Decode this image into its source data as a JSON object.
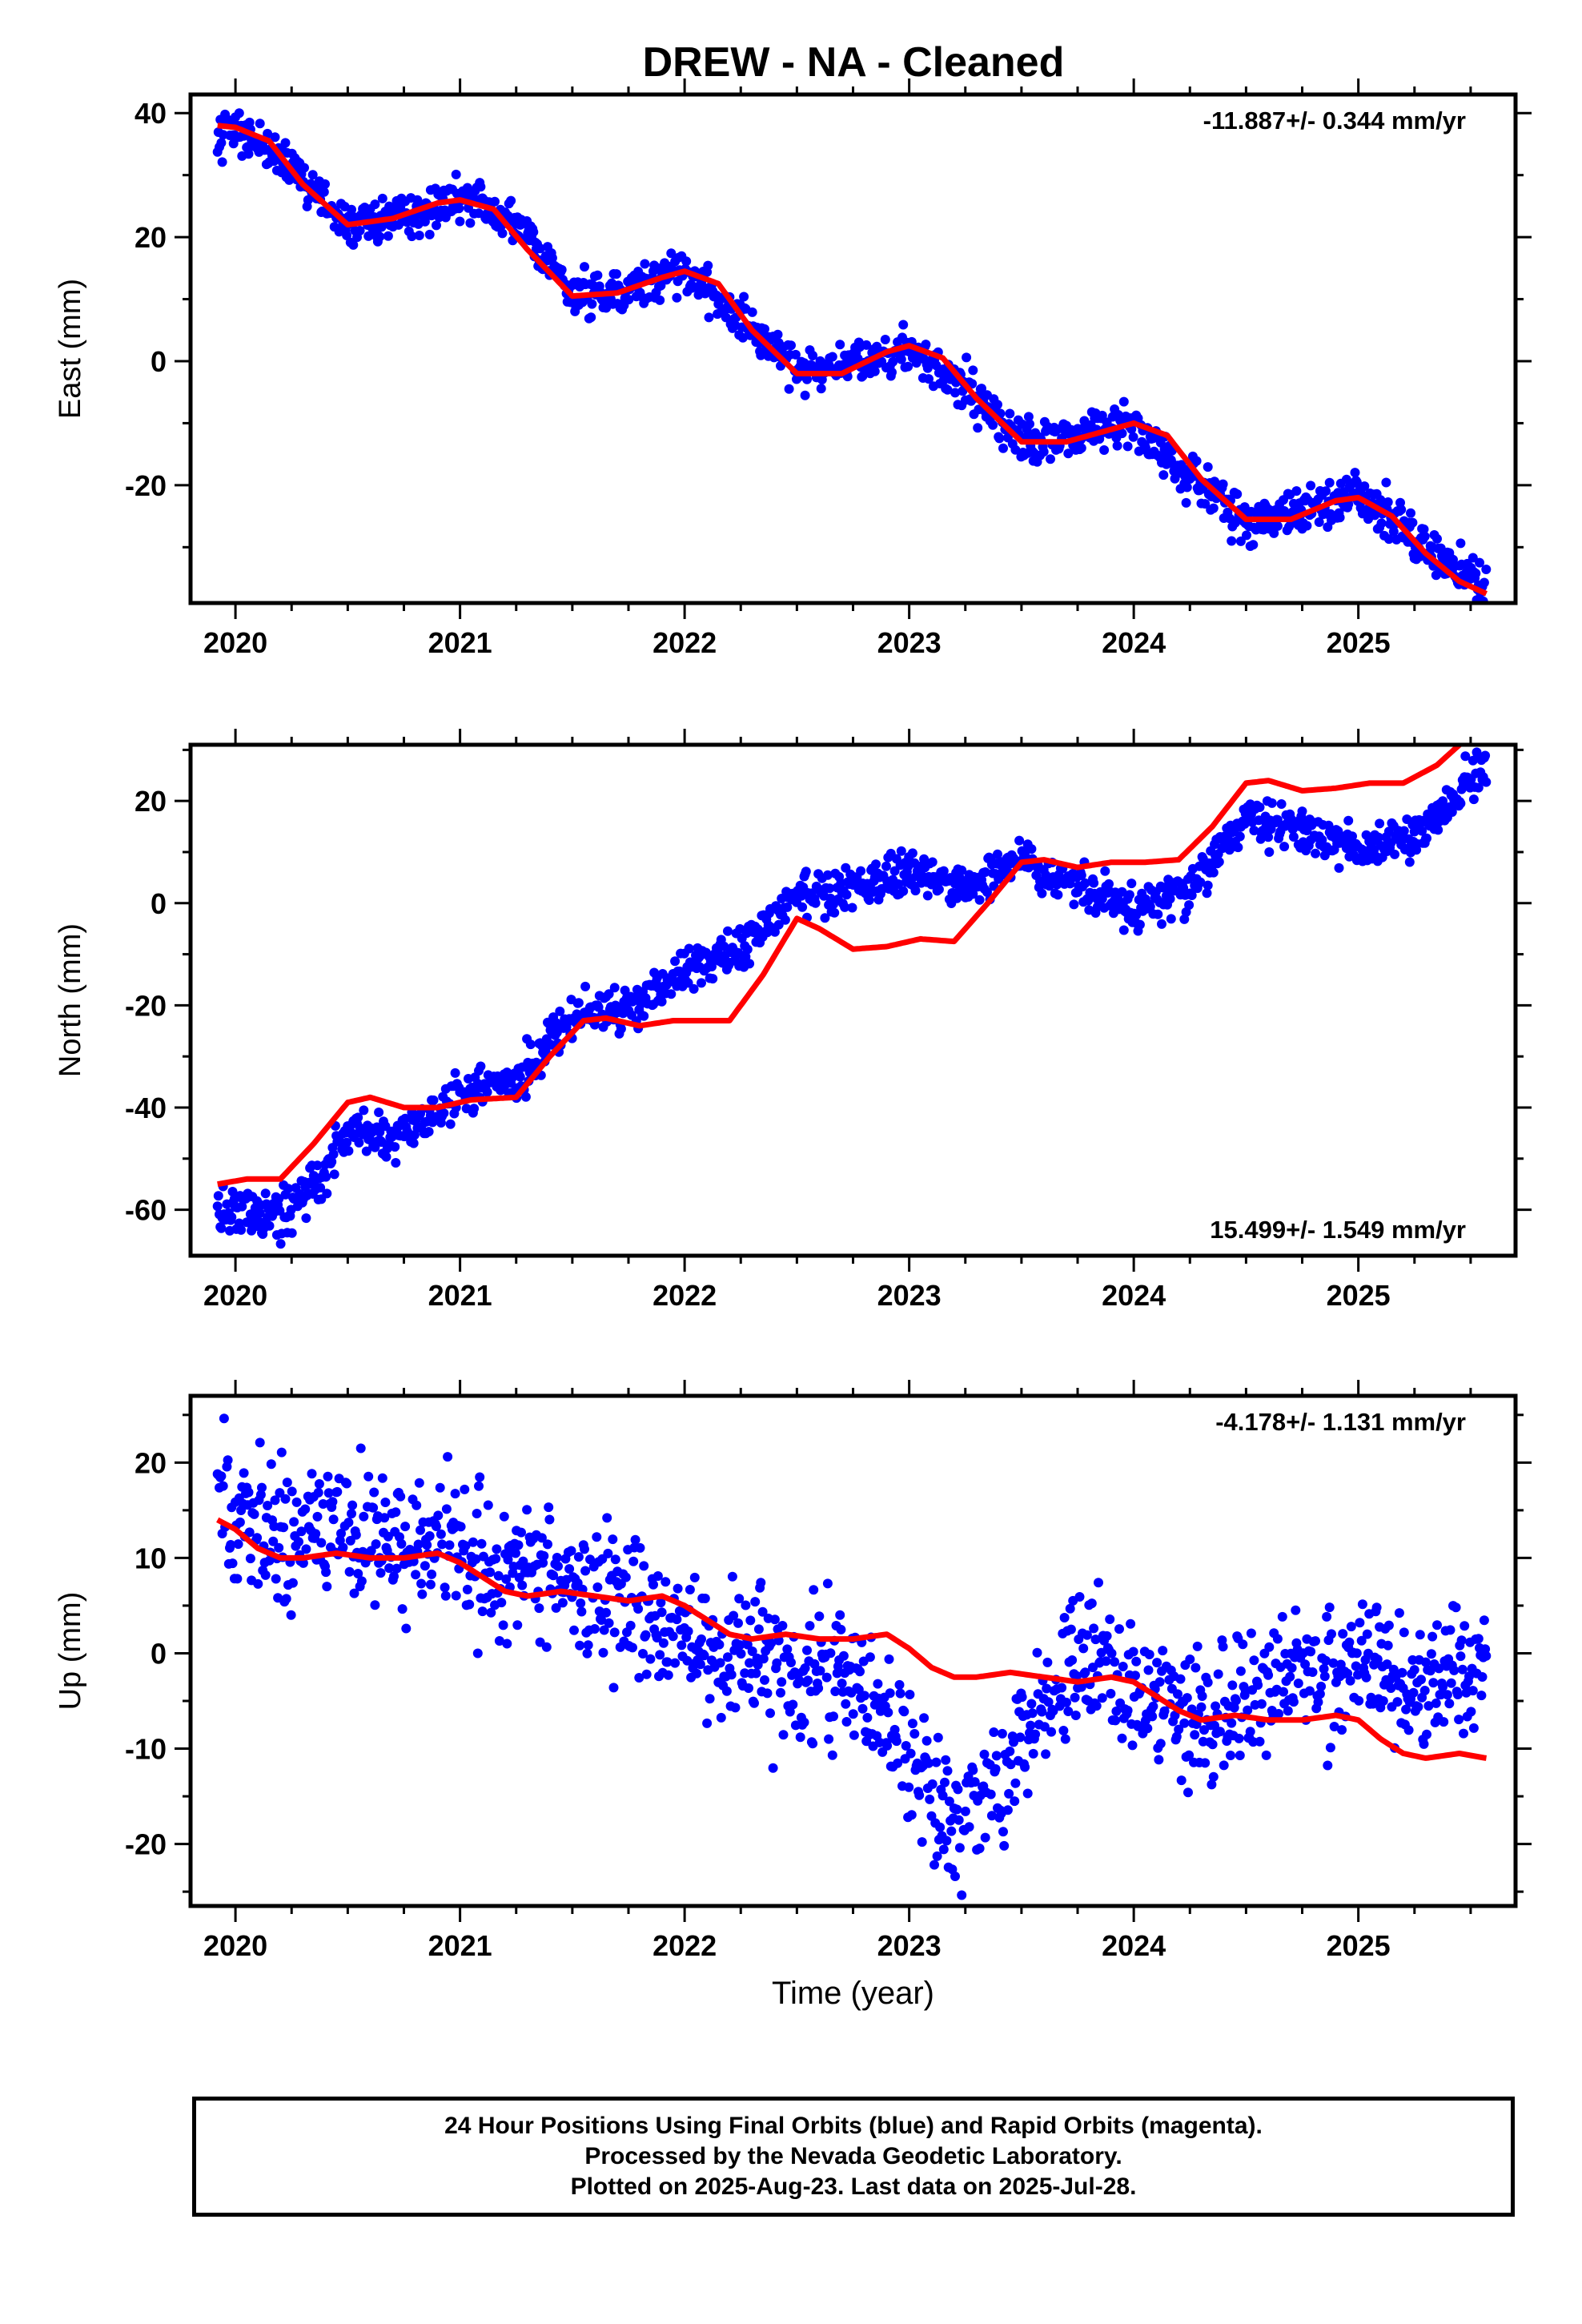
{
  "chart_data": [
    {
      "type": "scatter",
      "title": "DREW  - NA - Cleaned",
      "ylabel": "East (mm)",
      "xlabel": "",
      "rate_label": "-11.887+/- 0.344 mm/yr",
      "rate_position": "top-right",
      "xlim": [
        2019.8,
        2025.7
      ],
      "ylim": [
        -39,
        43
      ],
      "xticks": [
        "2020",
        "2021",
        "2022",
        "2023",
        "2024",
        "2025"
      ],
      "yticks": [
        "40",
        "20",
        "0",
        "-20"
      ],
      "ytick_values": [
        40,
        20,
        0,
        -20
      ],
      "data_summary": {
        "x": [
          2019.92,
          2020.0,
          2020.25,
          2020.5,
          2020.75,
          2021.0,
          2021.25,
          2021.5,
          2021.75,
          2022.0,
          2022.25,
          2022.5,
          2022.75,
          2023.0,
          2023.25,
          2023.5,
          2023.75,
          2024.0,
          2024.25,
          2024.5,
          2024.75,
          2025.0,
          2025.25,
          2025.57
        ],
        "y": [
          38,
          37,
          31,
          22,
          23,
          26,
          22,
          11,
          11,
          15,
          7,
          -2,
          0,
          2,
          -4,
          -13,
          -12,
          -10,
          -19,
          -26,
          -24,
          -21,
          -29,
          -37
        ]
      },
      "series": [
        {
          "name": "24 hour positions",
          "color": "#0000ff",
          "noise": 1.8
        },
        {
          "name": "model fit",
          "color": "#ff0000",
          "x": [
            2019.92,
            2020.0,
            2020.15,
            2020.3,
            2020.5,
            2020.7,
            2020.9,
            2021.0,
            2021.15,
            2021.3,
            2021.5,
            2021.7,
            2021.9,
            2022.0,
            2022.15,
            2022.3,
            2022.5,
            2022.7,
            2022.9,
            2023.0,
            2023.15,
            2023.3,
            2023.5,
            2023.7,
            2023.9,
            2024.0,
            2024.15,
            2024.3,
            2024.5,
            2024.7,
            2024.9,
            2025.0,
            2025.15,
            2025.3,
            2025.45,
            2025.57
          ],
          "y": [
            38,
            37.7,
            35.5,
            28.5,
            22,
            23,
            25.5,
            26,
            24.5,
            18,
            10.5,
            11,
            13.5,
            14.5,
            12.5,
            5,
            -2,
            -2,
            1.5,
            2.5,
            0.5,
            -6,
            -13,
            -13,
            -11,
            -10,
            -12,
            -19,
            -25.5,
            -25.5,
            -22.5,
            -22,
            -25,
            -31,
            -35.5,
            -37.5
          ]
        }
      ]
    },
    {
      "type": "scatter",
      "title": "",
      "ylabel": "North (mm)",
      "xlabel": "",
      "rate_label": "15.499+/- 1.549 mm/yr",
      "rate_position": "bottom-right",
      "xlim": [
        2019.8,
        2025.7
      ],
      "ylim": [
        -69,
        31
      ],
      "xticks": [
        "2020",
        "2021",
        "2022",
        "2023",
        "2024",
        "2025"
      ],
      "yticks": [
        "20",
        "0",
        "-20",
        "-40",
        "-60"
      ],
      "ytick_values": [
        20,
        0,
        -20,
        -40,
        -60
      ],
      "data_summary": {
        "x": [
          2019.92,
          2020.0,
          2020.2,
          2020.35,
          2020.5,
          2020.75,
          2021.0,
          2021.25,
          2021.5,
          2021.75,
          2022.0,
          2022.25,
          2022.5,
          2022.75,
          2023.0,
          2023.25,
          2023.5,
          2023.75,
          2024.0,
          2024.25,
          2024.5,
          2024.75,
          2025.0,
          2025.25,
          2025.57
        ],
        "y": [
          -61,
          -60,
          -61,
          -55,
          -45,
          -46,
          -37,
          -35,
          -22,
          -20,
          -13,
          -9,
          2,
          3,
          6,
          3,
          8,
          3,
          -1,
          3,
          16,
          15,
          11,
          13,
          27
        ]
      },
      "series": [
        {
          "name": "24 hour positions",
          "color": "#0000ff",
          "noise": 2.2
        },
        {
          "name": "model fit",
          "color": "#ff0000",
          "x": [
            2019.92,
            2020.05,
            2020.2,
            2020.35,
            2020.5,
            2020.6,
            2020.75,
            2020.9,
            2021.05,
            2021.25,
            2021.4,
            2021.55,
            2021.65,
            2021.8,
            2021.95,
            2022.1,
            2022.2,
            2022.35,
            2022.5,
            2022.6,
            2022.75,
            2022.9,
            2023.05,
            2023.2,
            2023.35,
            2023.5,
            2023.6,
            2023.75,
            2023.9,
            2024.05,
            2024.2,
            2024.35,
            2024.5,
            2024.6,
            2024.75,
            2024.9,
            2025.05,
            2025.2,
            2025.35,
            2025.45
          ],
          "y": [
            -55,
            -54,
            -54,
            -47,
            -39,
            -38,
            -40,
            -40,
            -38.5,
            -38,
            -30,
            -23,
            -22.5,
            -24,
            -23,
            -23,
            -23,
            -14,
            -3,
            -5,
            -9,
            -8.5,
            -7,
            -7.5,
            0,
            8,
            8.5,
            7,
            8,
            8,
            8.5,
            15,
            23.5,
            24,
            22,
            22.5,
            23.5,
            23.5,
            27,
            31
          ]
        }
      ]
    },
    {
      "type": "scatter",
      "title": "",
      "ylabel": "Up (mm)",
      "xlabel": "Time (year)",
      "rate_label": "-4.178+/- 1.131 mm/yr",
      "rate_position": "top-right",
      "xlim": [
        2019.8,
        2025.7
      ],
      "ylim": [
        -26.5,
        27
      ],
      "xticks": [
        "2020",
        "2021",
        "2022",
        "2023",
        "2024",
        "2025"
      ],
      "yticks": [
        "20",
        "10",
        "0",
        "-10",
        "-20"
      ],
      "ytick_values": [
        20,
        10,
        0,
        -10,
        -20
      ],
      "data_summary": {
        "x": [
          2019.92,
          2020.0,
          2020.25,
          2020.5,
          2020.75,
          2021.0,
          2021.25,
          2021.5,
          2021.75,
          2022.0,
          2022.25,
          2022.5,
          2022.75,
          2022.9,
          2023.1,
          2023.25,
          2023.5,
          2023.75,
          2024.0,
          2024.25,
          2024.5,
          2024.75,
          2025.0,
          2025.25,
          2025.57
        ],
        "y": [
          17,
          15,
          13,
          13,
          12,
          11,
          9,
          7,
          5,
          1,
          0,
          -2,
          -3,
          -6,
          -15,
          -18,
          -10,
          -1,
          -4,
          -7,
          -4,
          -2,
          -1,
          -4,
          -2
        ]
      },
      "series": [
        {
          "name": "24 hour positions",
          "color": "#0000ff",
          "noise": 3.6
        },
        {
          "name": "model fit",
          "color": "#ff0000",
          "x": [
            2019.92,
            2020.0,
            2020.1,
            2020.2,
            2020.3,
            2020.45,
            2020.6,
            2020.75,
            2020.9,
            2021.0,
            2021.1,
            2021.2,
            2021.3,
            2021.45,
            2021.6,
            2021.75,
            2021.9,
            2022.0,
            2022.1,
            2022.2,
            2022.3,
            2022.45,
            2022.6,
            2022.75,
            2022.9,
            2023.0,
            2023.1,
            2023.2,
            2023.3,
            2023.45,
            2023.6,
            2023.75,
            2023.9,
            2024.0,
            2024.1,
            2024.2,
            2024.3,
            2024.45,
            2024.6,
            2024.75,
            2024.9,
            2025.0,
            2025.1,
            2025.2,
            2025.3,
            2025.45,
            2025.57
          ],
          "y": [
            14,
            13,
            11,
            10,
            10,
            10.5,
            10,
            10,
            10.5,
            9.5,
            8,
            6.5,
            6,
            6.5,
            6,
            5.5,
            6,
            5,
            3.5,
            2,
            1.5,
            2,
            1.5,
            1.5,
            2,
            0.5,
            -1.5,
            -2.5,
            -2.5,
            -2,
            -2.5,
            -3,
            -2.5,
            -3,
            -4.5,
            -6,
            -7,
            -6.5,
            -7,
            -7,
            -6.5,
            -7,
            -9,
            -10.5,
            -11,
            -10.5,
            -11
          ]
        }
      ]
    }
  ],
  "footer": {
    "line1": "24 Hour Positions Using Final Orbits (blue) and Rapid Orbits (magenta).",
    "line2": "Processed by the Nevada Geodetic Laboratory.",
    "line3": "Plotted on 2025-Aug-23. Last data on 2025-Jul-28."
  }
}
